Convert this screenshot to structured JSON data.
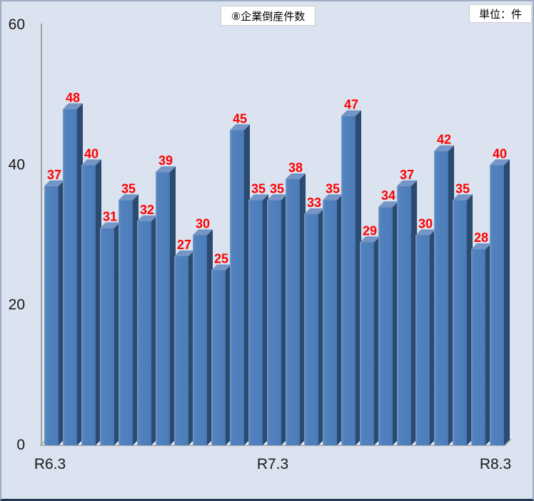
{
  "header": {
    "title": "⑧企業倒産件数",
    "unit_label": "単位：件"
  },
  "chart_data": {
    "type": "bar",
    "title": "⑧企業倒産件数",
    "unit": "件",
    "style": "3d-column",
    "values": [
      37,
      48,
      40,
      31,
      35,
      32,
      39,
      27,
      30,
      25,
      45,
      35,
      35,
      38,
      33,
      35,
      47,
      29,
      34,
      37,
      30,
      42,
      35,
      28,
      40
    ],
    "value_labels_shown": true,
    "x_tick_labels": [
      {
        "label": "R6.3",
        "bar_index": 0
      },
      {
        "label": "R7.3",
        "bar_index": 12
      },
      {
        "label": "R8.3",
        "bar_index": 24
      }
    ],
    "y_ticks": [
      0,
      20,
      40,
      60
    ],
    "ylim": [
      0,
      60
    ],
    "grid": false,
    "legend": "none",
    "colors": {
      "bar_front": "#4d7eba",
      "bar_front_highlight": "#7b9cc9",
      "bar_side": "#2b4a70",
      "bar_top": "#7495c5",
      "value_label": "#ff0000",
      "axis": "#a0a0a0",
      "floor_fill": "#f4f4f4",
      "tick_label": "#1a1a1a",
      "background": "#dae3ef"
    }
  }
}
